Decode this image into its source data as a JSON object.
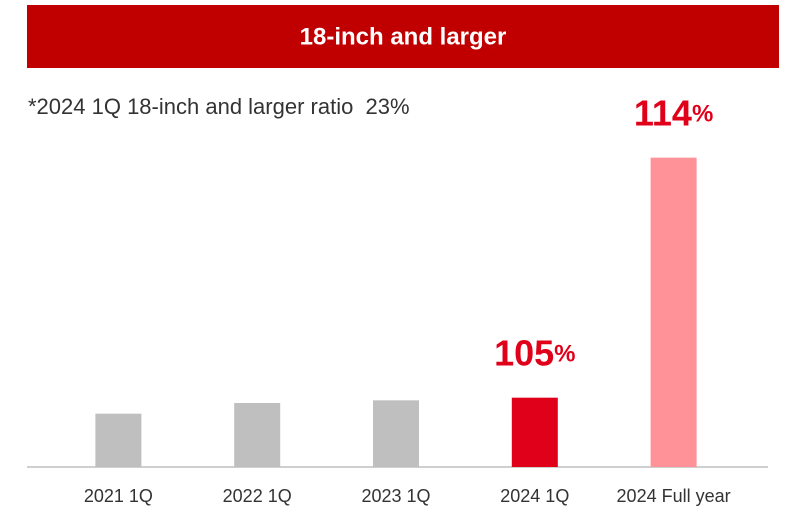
{
  "chart_data": {
    "type": "bar",
    "title": "18-inch and larger",
    "annotation": "*2024 1Q 18-inch and larger ratio  23%",
    "categories": [
      "2021 1Q",
      "2022 1Q",
      "2023 1Q",
      "2024 1Q",
      "2024 Full year"
    ],
    "values": [
      104.4,
      104.8,
      104.9,
      105,
      114
    ],
    "value_labels": [
      null,
      null,
      null,
      "105%",
      "114%"
    ],
    "colors": [
      "#bfbfbf",
      "#bfbfbf",
      "#bfbfbf",
      "#e0001a",
      "#ff9198"
    ],
    "label_color": "#e0001a",
    "ylim": [
      102.4,
      115
    ]
  }
}
